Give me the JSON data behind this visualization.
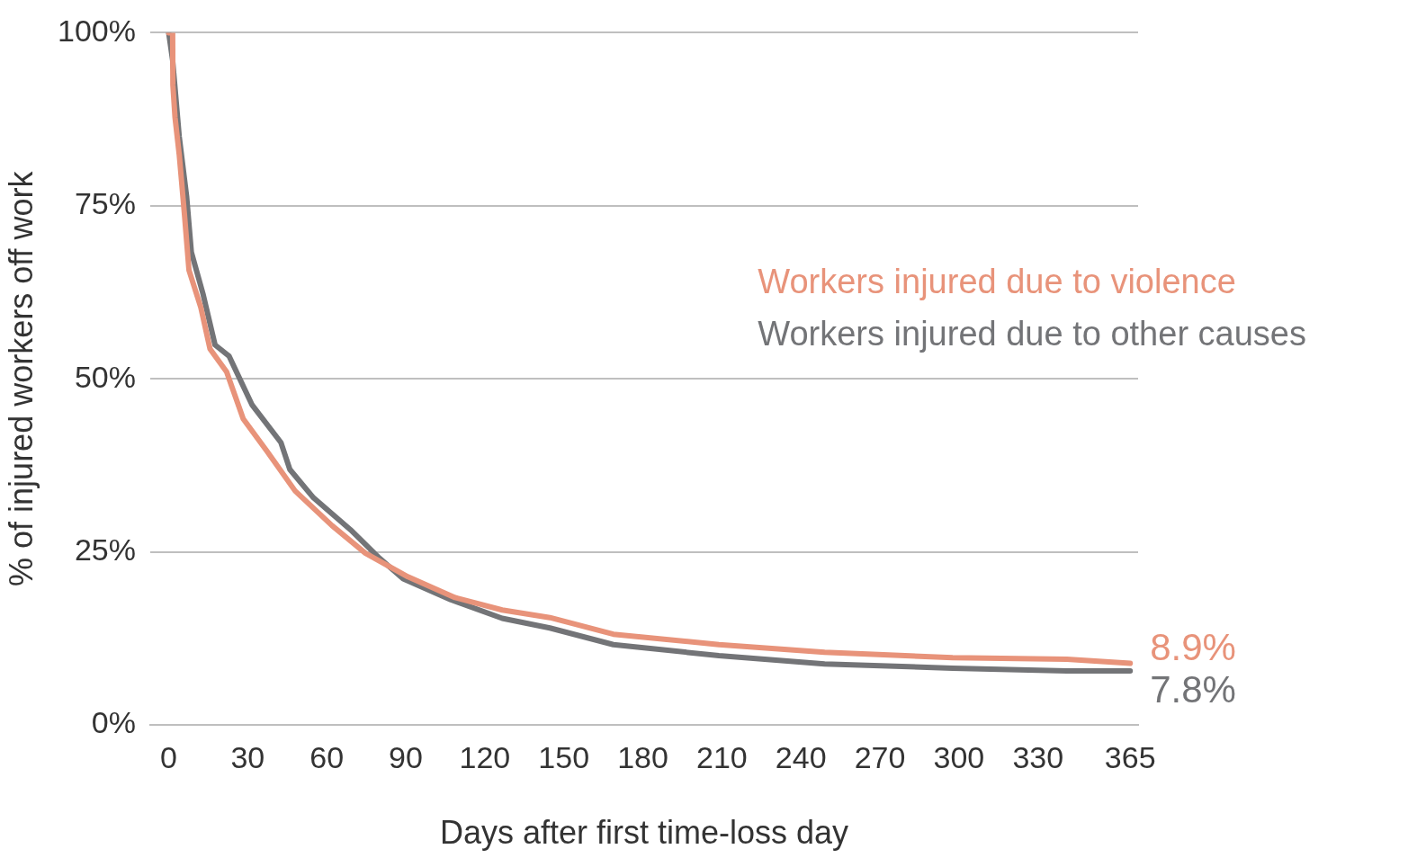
{
  "chart_data": {
    "type": "line",
    "xlabel": "Days after first time-loss day",
    "ylabel": "% of injured workers off work",
    "xlim": [
      -7,
      368
    ],
    "xticks": [
      0,
      30,
      60,
      90,
      120,
      150,
      180,
      210,
      240,
      270,
      300,
      330,
      365
    ],
    "ylim": [
      0,
      100
    ],
    "yticks": [
      {
        "value": 0,
        "label": "0%"
      },
      {
        "value": 25,
        "label": "25%"
      },
      {
        "value": 50,
        "label": "50%"
      },
      {
        "value": 75,
        "label": "75%"
      },
      {
        "value": 100,
        "label": "100%"
      }
    ],
    "grid": "y",
    "legend": "right",
    "marker": "none",
    "line_style": "solid",
    "series": [
      {
        "name": "Workers injured due to violence",
        "color": "#e8937a",
        "x": [
          0,
          1.5,
          1.6,
          2.4,
          4,
          6,
          7.7,
          12.2,
          15.7,
          22,
          28.3,
          37.2,
          48,
          62,
          74.7,
          90.8,
          108.7,
          126.6,
          144.7,
          168.8,
          208.9,
          249,
          297.6,
          341,
          365
        ],
        "values": [
          100,
          100,
          92.4,
          87.8,
          82.4,
          73.7,
          65.7,
          60.3,
          54.3,
          51,
          44.2,
          39.6,
          33.8,
          28.8,
          24.8,
          21.4,
          18.4,
          16.6,
          15.5,
          13.1,
          11.6,
          10.5,
          9.7,
          9.5,
          8.9
        ]
      },
      {
        "name": "Workers injured due to other causes",
        "color": "#737477",
        "x": [
          0,
          1.5,
          4,
          6.8,
          8.6,
          13,
          17.6,
          22.9,
          31.7,
          42.6,
          46,
          55,
          69,
          80,
          89,
          107,
          126.6,
          144.7,
          168.8,
          208.9,
          249,
          297.6,
          341,
          365
        ],
        "values": [
          100,
          96,
          85,
          76.4,
          68.3,
          62.3,
          54.9,
          53.3,
          46.2,
          40.8,
          36.9,
          32.8,
          28.2,
          24.1,
          21.1,
          18.1,
          15.4,
          14,
          11.6,
          10,
          8.8,
          8.2,
          7.8,
          7.8
        ]
      }
    ],
    "annotations": [
      {
        "text": "8.9%",
        "x": 365,
        "y": 8.9
      },
      {
        "text": "7.8%",
        "x": 365,
        "y": 7.8
      }
    ]
  }
}
